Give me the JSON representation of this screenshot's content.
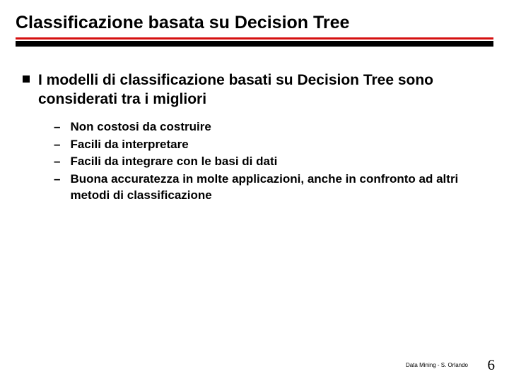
{
  "title": "Classificazione basata su Decision Tree",
  "main_bullet": "I modelli di classificazione basati su Decision Tree sono considerati tra i migliori",
  "sub_items": [
    "Non costosi da costruire",
    "Facili da interpretare",
    "Facili da integrare con le basi di dati",
    "Buona accuratezza in molte applicazioni, anche in confronto ad altri metodi di classificazione"
  ],
  "footer_credit": "Data Mining - S. Orlando",
  "page_number": "6",
  "colors": {
    "red_line": "#d51010",
    "black": "#000000",
    "background": "#ffffff"
  }
}
